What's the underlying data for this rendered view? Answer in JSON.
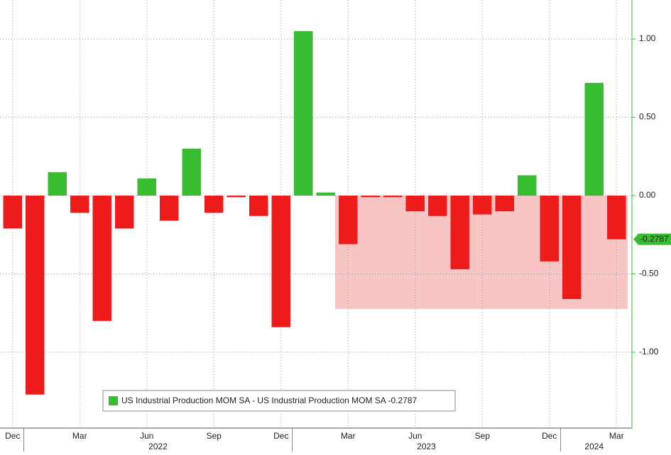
{
  "chart_data": {
    "type": "bar",
    "categories": [
      "Dec",
      null,
      null,
      "Mar",
      null,
      null,
      "Jun",
      null,
      null,
      "Sep",
      null,
      null,
      "Dec",
      null,
      null,
      "Mar",
      null,
      null,
      "Jun",
      null,
      null,
      "Sep",
      null,
      null,
      "Dec",
      null,
      null,
      "Mar"
    ],
    "x_groups": [
      {
        "label": "2022",
        "start": 1
      },
      {
        "label": "2023",
        "start": 13
      },
      {
        "label": "2024",
        "start": 25
      }
    ],
    "series": [
      {
        "name": "US Industrial Production MOM SA - US Industrial Production MOM SA -0.2787",
        "color": "#37bd2f",
        "negative_color": "#ee1b1b",
        "values": [
          -0.21,
          -1.27,
          0.15,
          -0.11,
          -0.8,
          -0.21,
          0.11,
          -0.16,
          0.3,
          -0.11,
          -0.01,
          -0.13,
          -0.84,
          1.05,
          0.02,
          -0.31,
          -0.01,
          -0.01,
          -0.1,
          -0.13,
          -0.47,
          -0.12,
          -0.1,
          0.13,
          -0.42,
          -0.66,
          0.72,
          -0.2787
        ],
        "value_labels": [
          null,
          null,
          null,
          null,
          null,
          null,
          null,
          null,
          null,
          null,
          null,
          null,
          null,
          null,
          null,
          null,
          null,
          null,
          null,
          null,
          null,
          null,
          null,
          null,
          null,
          null,
          null,
          "-0.2787"
        ]
      }
    ],
    "ylim": [
      -1.484,
      1.249
    ],
    "yticks": [
      {
        "value": 1,
        "label": "1.00"
      },
      {
        "value": 0.5,
        "label": "0.50"
      },
      {
        "value": 0,
        "label": "0.00"
      },
      {
        "value": -0.5,
        "label": "-0.50"
      },
      {
        "value": -1,
        "label": "-1.00"
      }
    ],
    "grid": true
  }
}
